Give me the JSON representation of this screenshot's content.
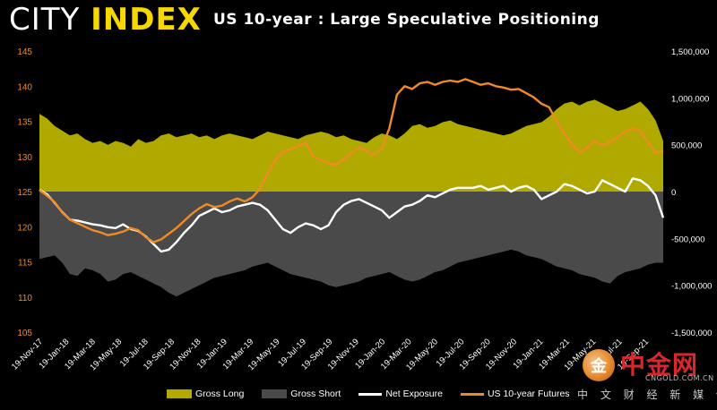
{
  "brand": {
    "part1": "CITY ",
    "part2": "INDEX"
  },
  "chart_data": {
    "type": "area",
    "title": "US 10-year : Large Speculative Positioning",
    "x_labels": [
      "19-Nov-17",
      "19-Jan-18",
      "19-Mar-18",
      "19-May-18",
      "19-Jul-18",
      "19-Sep-18",
      "19-Nov-18",
      "19-Jan-19",
      "19-Mar-19",
      "19-May-19",
      "19-Jul-19",
      "19-Sep-19",
      "19-Nov-19",
      "19-Jan-20",
      "19-Mar-20",
      "19-May-20",
      "19-Jul-20",
      "19-Sep-20",
      "19-Nov-20",
      "19-Jan-21",
      "19-Mar-21",
      "19-May-21",
      "19-Jul-21",
      "19-Sep-21"
    ],
    "left_axis": {
      "ticks": [
        "145",
        "140",
        "135",
        "130",
        "125",
        "120",
        "115",
        "110",
        "105"
      ],
      "ylim": [
        105,
        145
      ],
      "color": "#f08a24"
    },
    "right_axis": {
      "ticks": [
        "1,500,000",
        "1,000,000",
        "500,000",
        "0",
        "-500,000",
        "-1,000,000",
        "-1,500,000"
      ],
      "ylim": [
        -1500000,
        1500000
      ],
      "color": "#ffffff"
    },
    "legend_position": "bottom",
    "series": [
      {
        "name": "Gross Long",
        "axis": "right",
        "color": "#b0aa00",
        "values": [
          830000,
          780000,
          700000,
          650000,
          600000,
          620000,
          560000,
          520000,
          540000,
          500000,
          540000,
          520000,
          480000,
          560000,
          520000,
          540000,
          600000,
          620000,
          580000,
          600000,
          620000,
          580000,
          600000,
          560000,
          600000,
          620000,
          600000,
          580000,
          560000,
          600000,
          640000,
          620000,
          600000,
          580000,
          560000,
          600000,
          620000,
          640000,
          620000,
          580000,
          600000,
          560000,
          540000,
          520000,
          580000,
          620000,
          600000,
          560000,
          620000,
          700000,
          720000,
          680000,
          700000,
          740000,
          760000,
          720000,
          700000,
          680000,
          660000,
          640000,
          620000,
          600000,
          620000,
          660000,
          700000,
          720000,
          740000,
          800000,
          880000,
          940000,
          960000,
          920000,
          960000,
          980000,
          940000,
          900000,
          860000,
          880000,
          920000,
          960000,
          880000,
          760000,
          540000
        ]
      },
      {
        "name": "Gross Short",
        "axis": "right",
        "color": "#4a4a4a",
        "values": [
          -720000,
          -700000,
          -680000,
          -760000,
          -880000,
          -900000,
          -820000,
          -840000,
          -880000,
          -960000,
          -940000,
          -880000,
          -860000,
          -900000,
          -940000,
          -980000,
          -1020000,
          -1080000,
          -1120000,
          -1080000,
          -1040000,
          -1000000,
          -960000,
          -920000,
          -900000,
          -880000,
          -860000,
          -840000,
          -800000,
          -780000,
          -760000,
          -800000,
          -840000,
          -880000,
          -900000,
          -920000,
          -940000,
          -960000,
          -1000000,
          -1020000,
          -1000000,
          -980000,
          -960000,
          -920000,
          -900000,
          -880000,
          -860000,
          -900000,
          -940000,
          -960000,
          -940000,
          -900000,
          -860000,
          -840000,
          -800000,
          -760000,
          -740000,
          -720000,
          -700000,
          -680000,
          -660000,
          -640000,
          -620000,
          -640000,
          -680000,
          -700000,
          -720000,
          -760000,
          -800000,
          -820000,
          -840000,
          -880000,
          -900000,
          -920000,
          -960000,
          -980000,
          -900000,
          -860000,
          -840000,
          -820000,
          -780000,
          -760000,
          -760000
        ]
      },
      {
        "name": "Net Exposure",
        "axis": "right",
        "color": "#ffffff",
        "values": [
          20000,
          -30000,
          -120000,
          -220000,
          -300000,
          -310000,
          -330000,
          -350000,
          -360000,
          -380000,
          -390000,
          -350000,
          -400000,
          -420000,
          -480000,
          -560000,
          -640000,
          -620000,
          -540000,
          -440000,
          -360000,
          -260000,
          -220000,
          -180000,
          -220000,
          -200000,
          -160000,
          -140000,
          -120000,
          -140000,
          -200000,
          -300000,
          -400000,
          -440000,
          -380000,
          -340000,
          -360000,
          -400000,
          -360000,
          -220000,
          -140000,
          -100000,
          -80000,
          -120000,
          -160000,
          -200000,
          -280000,
          -220000,
          -160000,
          -140000,
          -100000,
          -40000,
          -60000,
          -20000,
          20000,
          40000,
          40000,
          40000,
          60000,
          20000,
          40000,
          60000,
          0,
          40000,
          60000,
          20000,
          -80000,
          -40000,
          0,
          80000,
          60000,
          20000,
          -20000,
          0,
          120000,
          80000,
          40000,
          0,
          140000,
          120000,
          60000,
          -40000,
          -280000
        ]
      },
      {
        "name": "US 10-year Futures",
        "axis": "left",
        "color": "#f08a24",
        "values": [
          125.2,
          124.4,
          123.5,
          122.0,
          121.0,
          120.5,
          120.0,
          119.5,
          119.2,
          118.8,
          119.0,
          119.3,
          119.8,
          119.5,
          118.5,
          117.8,
          118.2,
          119.0,
          119.8,
          120.8,
          121.8,
          122.6,
          123.2,
          122.8,
          123.0,
          123.6,
          124.0,
          123.6,
          124.2,
          125.4,
          127.6,
          129.5,
          130.6,
          131.0,
          131.5,
          132.0,
          130.0,
          129.5,
          129.0,
          128.8,
          129.6,
          130.5,
          131.2,
          130.8,
          130.2,
          131.2,
          134.0,
          138.8,
          140.0,
          139.6,
          140.4,
          140.6,
          140.2,
          140.6,
          140.8,
          140.6,
          141.0,
          140.6,
          140.2,
          140.4,
          140.0,
          139.8,
          139.5,
          139.6,
          139.0,
          138.4,
          137.5,
          137.0,
          135.0,
          133.2,
          131.8,
          130.6,
          131.2,
          132.2,
          131.6,
          132.0,
          132.8,
          133.5,
          134.0,
          133.6,
          132.0,
          130.5,
          130.8
        ]
      }
    ]
  },
  "legend": {
    "gross_long": "Gross Long",
    "gross_short": "Gross Short",
    "net_exposure": "Net Exposure",
    "futures": "US 10-year Futures"
  },
  "watermark": {
    "logo_char": "金",
    "name": "中金网",
    "url": "CNGOLD.COM.CN",
    "subtitle": "中 文 财 经 新 媒 体"
  }
}
